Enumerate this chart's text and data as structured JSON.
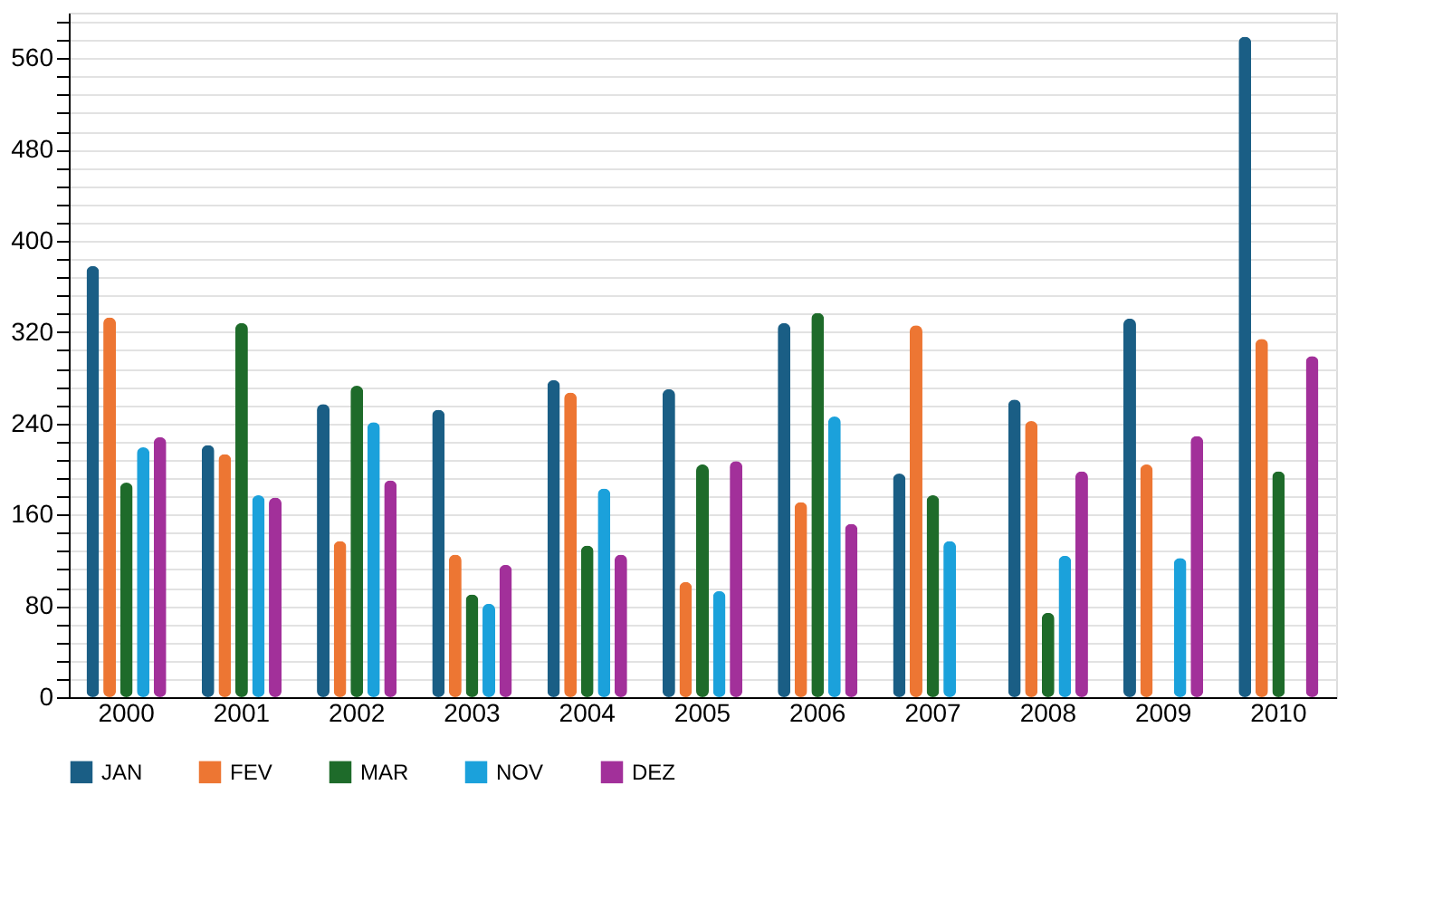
{
  "chart_data": {
    "type": "bar",
    "categories": [
      "2000",
      "2001",
      "2002",
      "2003",
      "2004",
      "2005",
      "2006",
      "2007",
      "2008",
      "2009",
      "2010"
    ],
    "series": [
      {
        "name": "JAN",
        "color": "#1a5e85",
        "values": [
          378,
          221,
          257,
          252,
          278,
          270,
          328,
          196,
          261,
          332,
          579
        ]
      },
      {
        "name": "FEV",
        "color": "#ed7633",
        "values": [
          333,
          213,
          137,
          125,
          267,
          101,
          171,
          326,
          242,
          204,
          314
        ]
      },
      {
        "name": "MAR",
        "color": "#1e6b2a",
        "values": [
          188,
          328,
          273,
          90,
          133,
          204,
          337,
          177,
          74,
          null,
          198
        ]
      },
      {
        "name": "NOV",
        "color": "#1ba1db",
        "values": [
          219,
          177,
          241,
          82,
          183,
          93,
          246,
          137,
          124,
          122,
          null
        ]
      },
      {
        "name": "DEZ",
        "color": "#a2309a",
        "values": [
          228,
          175,
          190,
          116,
          125,
          207,
          152,
          null,
          198,
          229,
          299
        ]
      }
    ],
    "ylim": [
      0,
      600
    ],
    "yticks": [
      0,
      {
        "value": 16,
        "label": null
      },
      {
        "value": 32,
        "label": null
      },
      {
        "value": 48,
        "label": null
      },
      {
        "value": 64,
        "label": null
      },
      80,
      {
        "value": 96,
        "label": null
      },
      {
        "value": 112,
        "label": null
      },
      {
        "value": 128,
        "label": null
      },
      {
        "value": 144,
        "label": null
      },
      160,
      {
        "value": 176,
        "label": null
      },
      {
        "value": 192,
        "label": null
      },
      {
        "value": 208,
        "label": null
      },
      {
        "value": 224,
        "label": null
      },
      240,
      {
        "value": 256,
        "label": null
      },
      {
        "value": 272,
        "label": null
      },
      {
        "value": 288,
        "label": null
      },
      {
        "value": 304,
        "label": null
      },
      320,
      {
        "value": 336,
        "label": null
      },
      {
        "value": 352,
        "label": null
      },
      {
        "value": 368,
        "label": null
      },
      {
        "value": 384,
        "label": null
      },
      400,
      {
        "value": 416,
        "label": null
      },
      {
        "value": 432,
        "label": null
      },
      {
        "value": 448,
        "label": null
      },
      {
        "value": 464,
        "label": null
      },
      480,
      {
        "value": 496,
        "label": null
      },
      {
        "value": 512,
        "label": null
      },
      {
        "value": 528,
        "label": null
      },
      {
        "value": 544,
        "label": null
      },
      560,
      {
        "value": 576,
        "label": null
      },
      {
        "value": 592,
        "label": null
      }
    ],
    "grid": "y",
    "legend": "bottom"
  }
}
